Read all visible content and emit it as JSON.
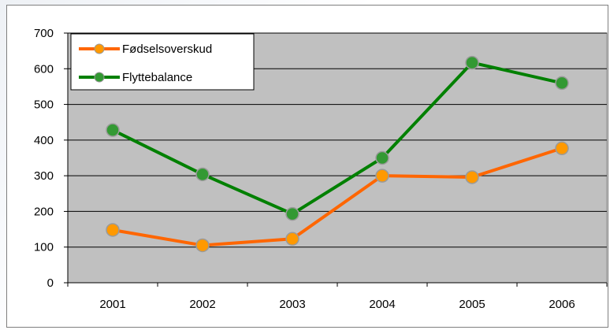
{
  "chart_data": {
    "type": "line",
    "title": "",
    "xlabel": "",
    "ylabel": "",
    "categories": [
      "2001",
      "2002",
      "2003",
      "2004",
      "2005",
      "2006"
    ],
    "ylim": [
      0,
      700
    ],
    "yticks": [
      0,
      100,
      200,
      300,
      400,
      500,
      600,
      700
    ],
    "grid": true,
    "legend_position": "top-left",
    "plot_background": "#c0c0c0",
    "series": [
      {
        "name": "Fødselsoverskud",
        "values": [
          148,
          105,
          123,
          300,
          296,
          377
        ],
        "line_color": "#ff6600",
        "marker_color": "#ff9900"
      },
      {
        "name": "Flyttebalance",
        "values": [
          428,
          304,
          193,
          350,
          617,
          560
        ],
        "line_color": "#008000",
        "marker_color": "#339933"
      }
    ]
  }
}
